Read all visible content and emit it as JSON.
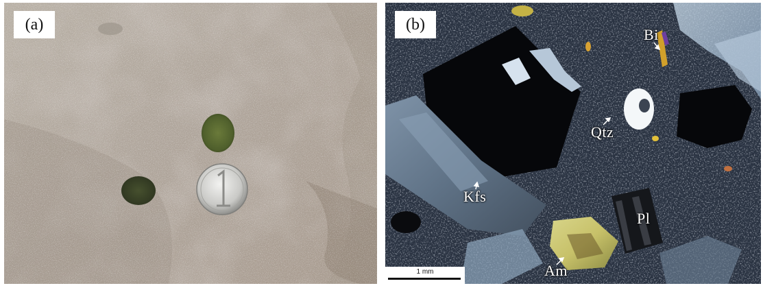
{
  "panels": [
    {
      "label": "(a)"
    },
    {
      "label": "(b)",
      "minerals": {
        "bi": "Bi",
        "qtz": "Qtz",
        "kfs": "Kfs",
        "pl": "Pl",
        "am": "Am"
      },
      "scale_bar": "1 mm"
    }
  ]
}
